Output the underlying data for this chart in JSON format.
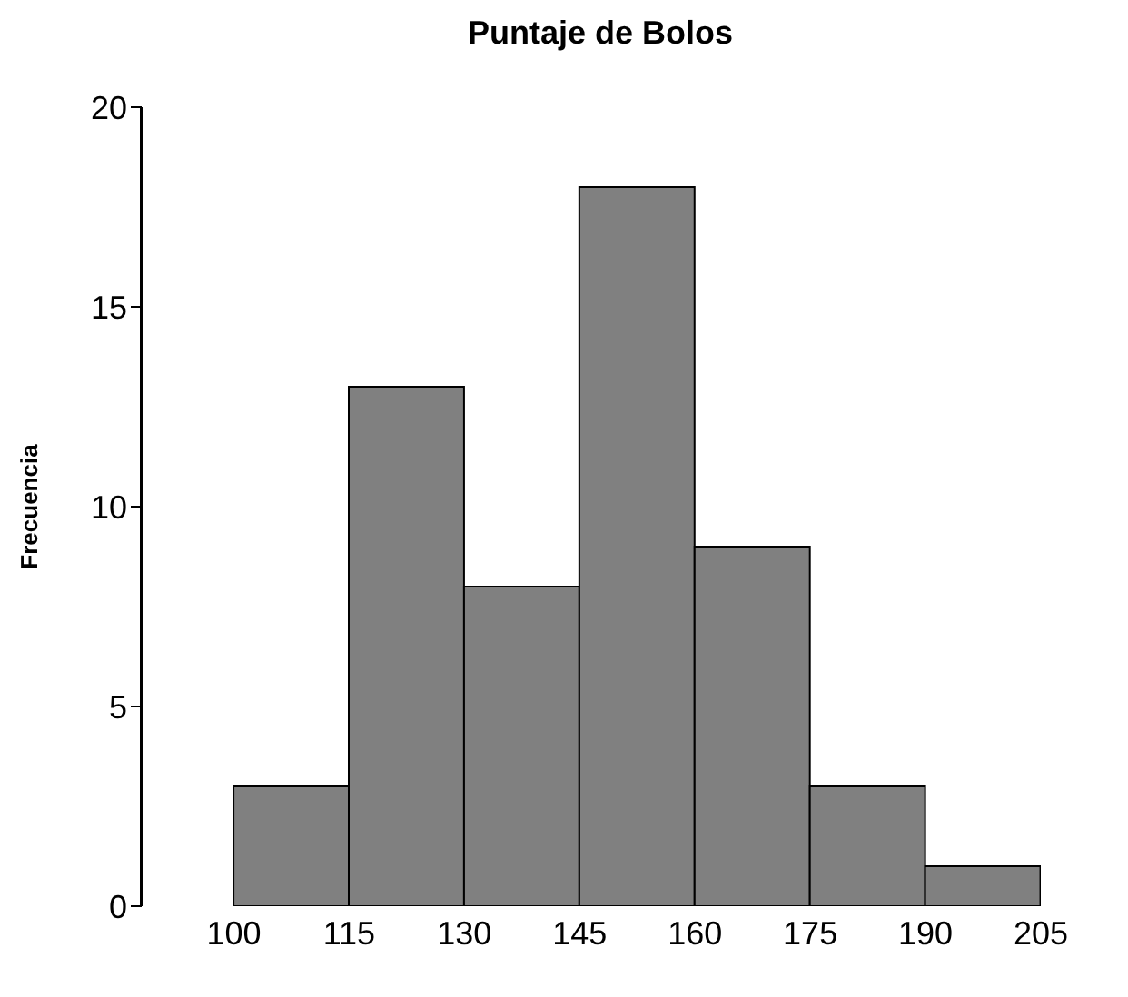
{
  "chart_data": {
    "type": "histogram",
    "title": "Puntaje de Bolos",
    "ylabel": "Frecuencia",
    "bins": [
      100,
      115,
      130,
      145,
      160,
      175,
      190,
      205
    ],
    "values": [
      3,
      13,
      8,
      18,
      9,
      3,
      1
    ],
    "color": "#808080",
    "xlim": [
      88,
      205
    ],
    "xticks": [
      100,
      115,
      130,
      145,
      160,
      175,
      190,
      205
    ],
    "ylim": [
      0,
      20
    ],
    "yticks": [
      0,
      5,
      10,
      15,
      20
    ],
    "grid": false,
    "legend": false
  }
}
